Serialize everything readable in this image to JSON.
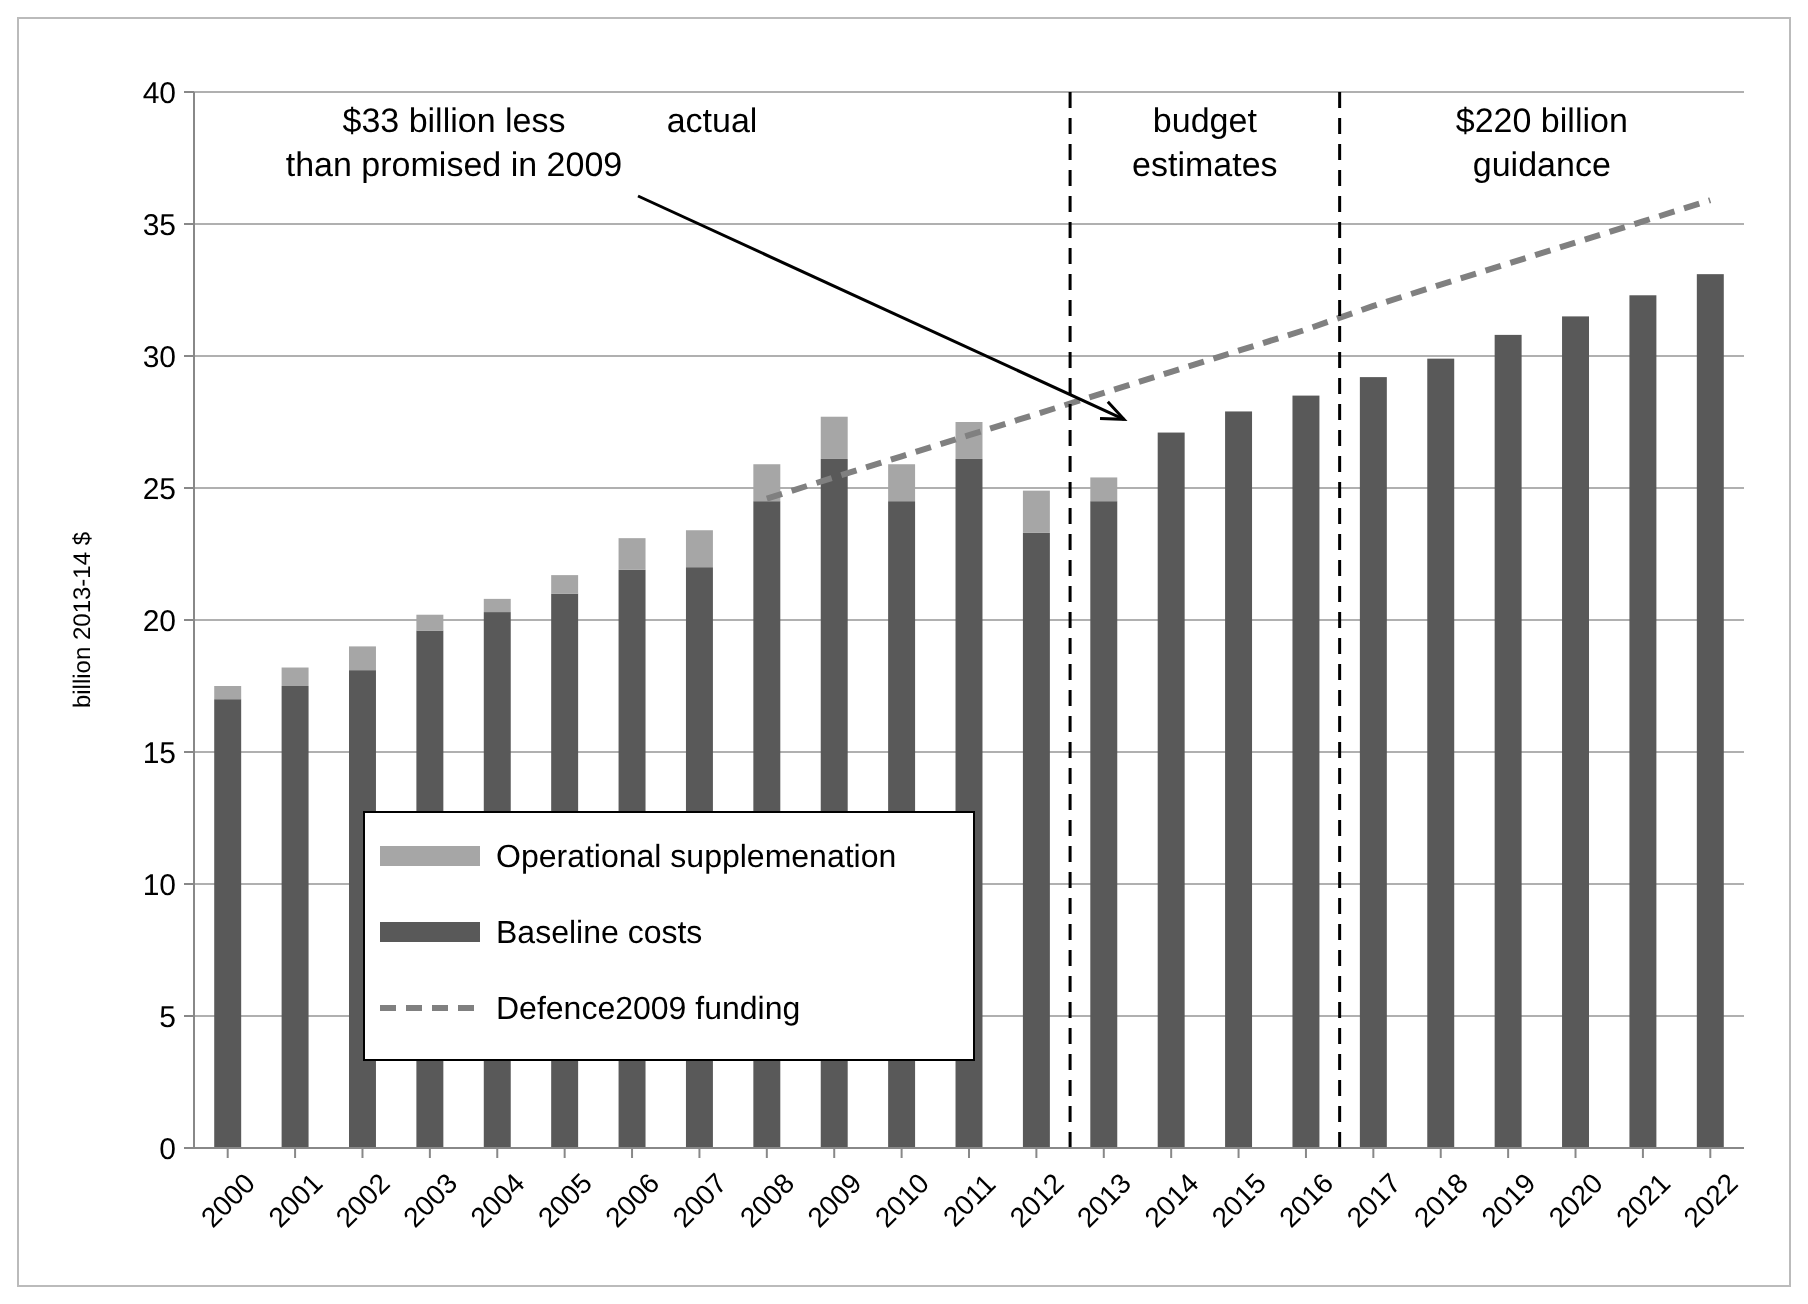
{
  "chart_data": {
    "type": "bar",
    "stacked": true,
    "ylabel": "billion 2013-14 $",
    "x": [
      2000,
      2001,
      2002,
      2003,
      2004,
      2005,
      2006,
      2007,
      2008,
      2009,
      2010,
      2011,
      2012,
      2013,
      2014,
      2015,
      2016,
      2017,
      2018,
      2019,
      2020,
      2021,
      2022
    ],
    "xlim": [
      1999.5,
      2022.5
    ],
    "xticks": [
      2000,
      2001,
      2002,
      2003,
      2004,
      2005,
      2006,
      2007,
      2008,
      2009,
      2010,
      2011,
      2012,
      2013,
      2014,
      2015,
      2016,
      2017,
      2018,
      2019,
      2020,
      2021,
      2022
    ],
    "ylim": [
      0,
      40
    ],
    "yticks": [
      0,
      5,
      10,
      15,
      20,
      25,
      30,
      35,
      40
    ],
    "grid": "y",
    "legend": "bottom left",
    "series": [
      {
        "name": "Baseline costs",
        "color": "#595959",
        "values": [
          17.0,
          17.5,
          18.1,
          19.6,
          20.3,
          21.0,
          21.9,
          22.0,
          24.5,
          26.1,
          24.5,
          26.1,
          23.3,
          24.5,
          27.1,
          27.9,
          28.5,
          29.2,
          29.9,
          30.8,
          31.5,
          32.3,
          33.1
        ]
      },
      {
        "name": "Operational supplemenation",
        "color": "#a6a6a6",
        "values": [
          0.5,
          0.7,
          0.9,
          0.6,
          0.5,
          0.7,
          1.2,
          1.4,
          1.4,
          1.6,
          1.4,
          1.4,
          1.6,
          0.9,
          null,
          null,
          null,
          null,
          null,
          null,
          null,
          null,
          null
        ]
      },
      {
        "name": "Defence2009 funding",
        "type": "line",
        "line_style": "dashed",
        "color": "#808080",
        "values": [
          null,
          null,
          null,
          null,
          null,
          null,
          null,
          null,
          24.6,
          25.4,
          26.2,
          27.0,
          27.8,
          28.6,
          29.4,
          30.2,
          31.0,
          31.9,
          32.7,
          33.5,
          34.3,
          35.1,
          35.9
        ]
      }
    ],
    "ref_lines": [
      {
        "axis": "x",
        "value": 2012.5,
        "line_style": "dashed",
        "color": "#000000"
      },
      {
        "axis": "x",
        "value": 2016.5,
        "line_style": "dashed",
        "color": "#000000"
      }
    ],
    "annotations": [
      "$33 billion less\nthan promised in 2009",
      "actual",
      "budget\nestimates",
      "$220 billion\nguidance"
    ]
  }
}
